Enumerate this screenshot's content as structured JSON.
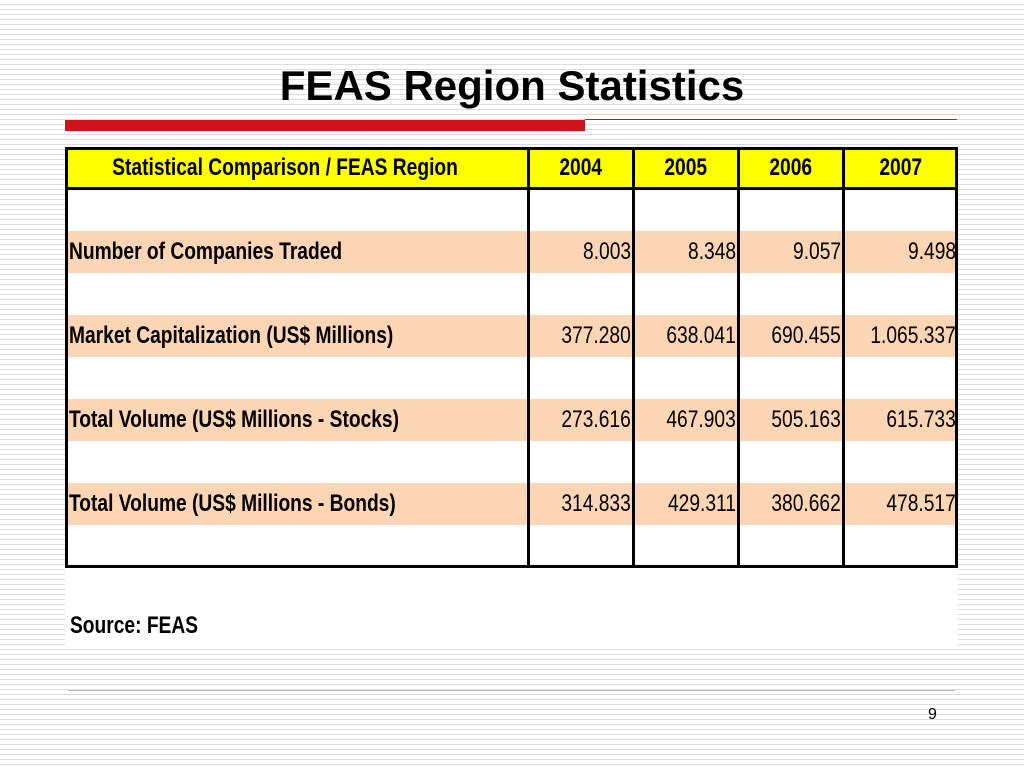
{
  "title": "FEAS Region Statistics",
  "table": {
    "header": [
      "Statistical Comparison / FEAS Region",
      "2004",
      "2005",
      "2006",
      "2007"
    ],
    "rows": [
      [
        "Number of Companies Traded",
        "8.003",
        "8.348",
        "9.057",
        "9.498"
      ],
      [
        "Market Capitalization (US$ Millions)",
        "377.280",
        "638.041",
        "690.455",
        "1.065.337"
      ],
      [
        "Total Volume (US$ Millions - Stocks)",
        "273.616",
        "467.903",
        "505.163",
        "615.733"
      ],
      [
        "Total Volume (US$ Millions - Bonds)",
        "314.833",
        "429.311",
        "380.662",
        "478.517"
      ]
    ]
  },
  "source": "Source: FEAS",
  "page_number": "9"
}
